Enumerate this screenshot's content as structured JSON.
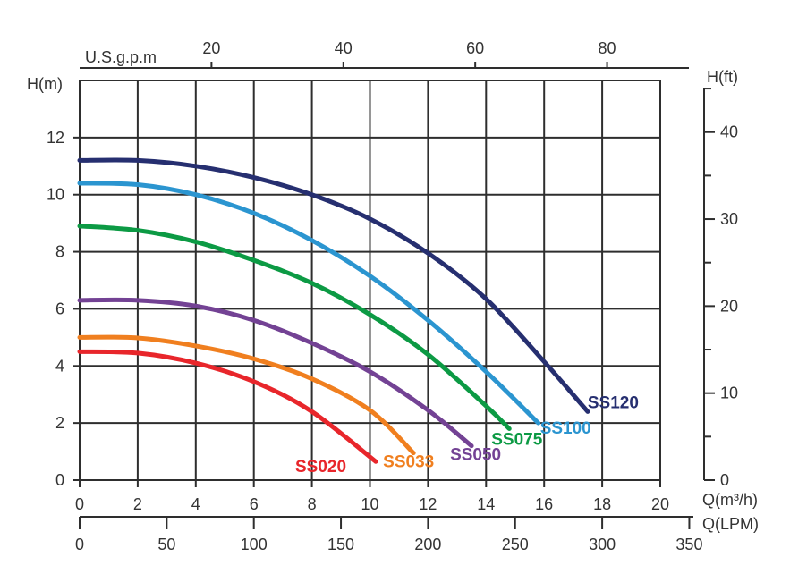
{
  "chart_data": {
    "type": "line",
    "xlabel_primary": "Q(m³/h)",
    "xlabel_lpm": "Q(LPM)",
    "xlabel_usgpm": "U.S.g.p.m",
    "ylabel_left": "H(m)",
    "ylabel_right": "H(ft)",
    "xlim": [
      0,
      20
    ],
    "ylim": [
      0,
      14
    ],
    "grid": true,
    "x_ticks": [
      "0",
      "2",
      "4",
      "6",
      "8",
      "10",
      "12",
      "14",
      "16",
      "18",
      "20"
    ],
    "y_ticks": [
      "0",
      "2",
      "4",
      "6",
      "8",
      "10",
      "12"
    ],
    "lpm_ticks": [
      "0",
      "50",
      "100",
      "150",
      "200",
      "250",
      "300",
      "350"
    ],
    "usgpm_ticks": [
      "20",
      "40",
      "60",
      "80"
    ],
    "ft_ticks": [
      "0",
      "10",
      "20",
      "30",
      "40"
    ],
    "series": [
      {
        "name": "SS020",
        "color": "#e8262b",
        "x": [
          0,
          2,
          4,
          6,
          8,
          10.2
        ],
        "y": [
          4.5,
          4.45,
          4.1,
          3.45,
          2.4,
          0.65
        ]
      },
      {
        "name": "SS033",
        "color": "#f07f1f",
        "x": [
          0,
          2,
          4,
          6,
          8,
          10,
          11.5
        ],
        "y": [
          5.0,
          4.98,
          4.7,
          4.25,
          3.55,
          2.45,
          0.95
        ]
      },
      {
        "name": "SS050",
        "color": "#734294",
        "x": [
          0,
          2,
          4,
          6,
          8,
          10,
          12,
          13.5
        ],
        "y": [
          6.3,
          6.3,
          6.1,
          5.6,
          4.8,
          3.8,
          2.45,
          1.2
        ]
      },
      {
        "name": "SS075",
        "color": "#0c9a44",
        "x": [
          0,
          2,
          4,
          6,
          8,
          10,
          12,
          14,
          14.8
        ],
        "y": [
          8.9,
          8.75,
          8.35,
          7.7,
          6.9,
          5.8,
          4.4,
          2.6,
          1.8
        ]
      },
      {
        "name": "SS100",
        "color": "#2b95d0",
        "x": [
          0,
          2,
          4,
          6,
          8,
          10,
          12,
          14,
          15.8
        ],
        "y": [
          10.4,
          10.35,
          10.0,
          9.35,
          8.4,
          7.15,
          5.6,
          3.8,
          2.0
        ]
      },
      {
        "name": "SS120",
        "color": "#262f70",
        "x": [
          0,
          2,
          4,
          6,
          8,
          10,
          12,
          14,
          16,
          17.5
        ],
        "y": [
          11.2,
          11.2,
          11.0,
          10.6,
          10.0,
          9.15,
          7.95,
          6.35,
          4.15,
          2.4
        ]
      }
    ]
  }
}
